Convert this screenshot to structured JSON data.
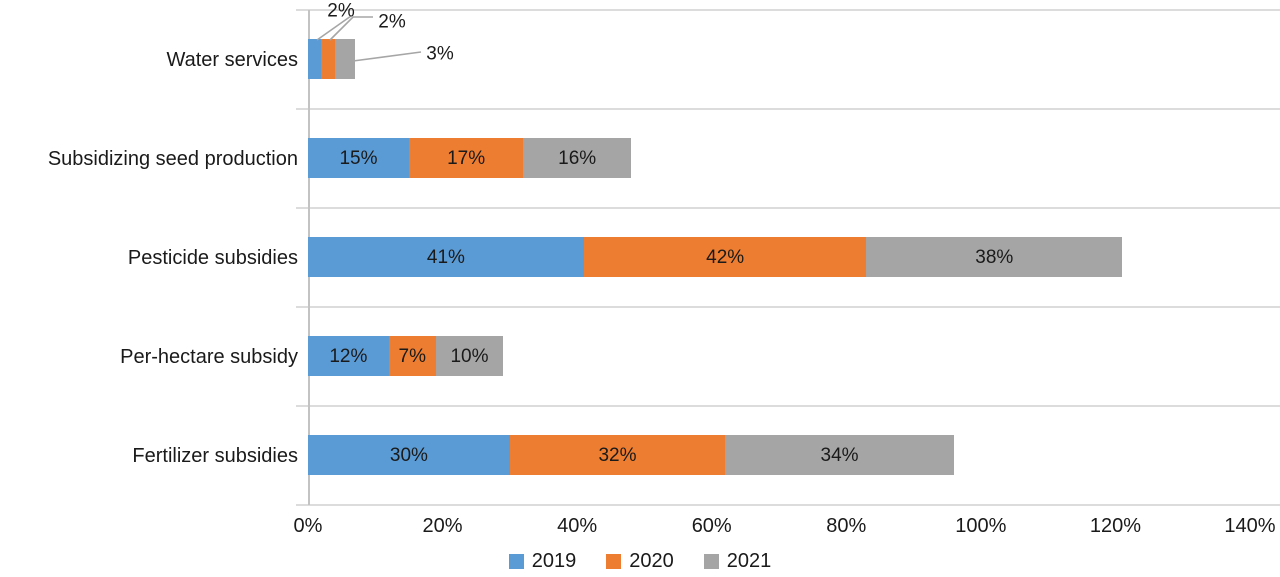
{
  "chart_data": {
    "type": "bar",
    "variant": "horizontal-stacked",
    "title": "",
    "categories": [
      "Water services",
      "Subsidizing seed production",
      "Pesticide subsidies",
      "Per-hectare subsidy",
      "Fertilizer subsidies"
    ],
    "series": [
      {
        "name": "2019",
        "color": "#5B9BD5",
        "values": [
          2,
          15,
          41,
          12,
          30
        ]
      },
      {
        "name": "2020",
        "color": "#ED7D31",
        "values": [
          2,
          17,
          42,
          7,
          32
        ]
      },
      {
        "name": "2021",
        "color": "#A5A5A5",
        "values": [
          3,
          16,
          38,
          10,
          34
        ]
      }
    ],
    "data_labels": {
      "format": "{value}%",
      "placement": "inside-center",
      "callout_category": "Water services",
      "callout_labels": [
        "2%",
        "2%",
        "3%"
      ]
    },
    "x_axis": {
      "min": 0,
      "max": 140,
      "tick_step": 20,
      "ticks": [
        "0%",
        "20%",
        "40%",
        "60%",
        "80%",
        "100%",
        "120%",
        "140%"
      ]
    },
    "y_axis": {
      "categories_top_to_bottom": [
        "Water services",
        "Subsidizing seed production",
        "Pesticide subsidies",
        "Per-hectare subsidy",
        "Fertilizer subsidies"
      ]
    },
    "legend": {
      "position": "bottom-center",
      "entries": [
        "2019",
        "2020",
        "2021"
      ]
    },
    "grid": {
      "horizontal_category_boundaries": true,
      "vertical": false
    },
    "colors": {
      "series_2019": "#5B9BD5",
      "series_2020": "#ED7D31",
      "series_2021": "#A5A5A5",
      "gridline": "#DCDCDC",
      "axis_line": "#C3C3C3",
      "leader_line": "#A6A6A6",
      "text": "#1A1A1A",
      "background": "#FFFFFF"
    }
  }
}
